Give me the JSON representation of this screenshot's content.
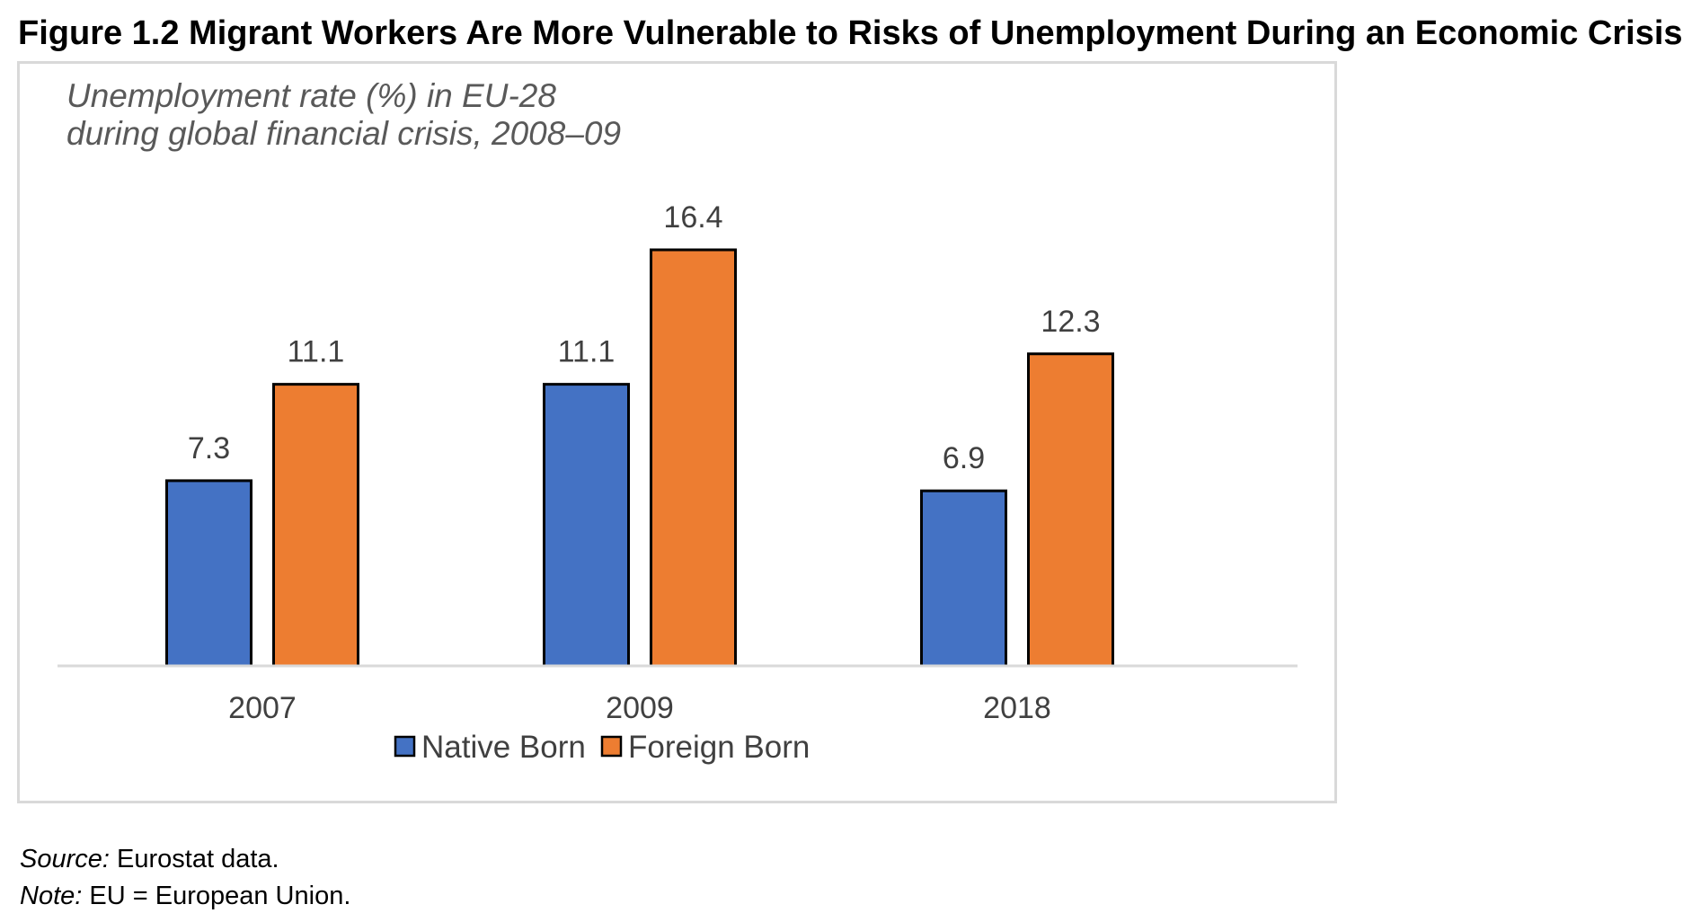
{
  "figure_title": "Figure 1.2 Migrant Workers Are More Vulnerable to Risks of Unemployment During an Economic Crisis",
  "chart_data": {
    "type": "bar",
    "subtitle_lines": [
      "Unemployment rate (%) in EU-28",
      "during global financial crisis, 2008–09"
    ],
    "categories": [
      "2007",
      "2009",
      "2018"
    ],
    "series": [
      {
        "name": "Native Born",
        "color": "#4472c4",
        "values": [
          7.3,
          11.1,
          6.9
        ],
        "labels": [
          "7.3",
          "11.1",
          "6.9"
        ]
      },
      {
        "name": "Foreign Born",
        "color": "#ed7d31",
        "values": [
          11.1,
          16.4,
          12.3
        ],
        "labels": [
          "11.1",
          "16.4",
          "12.3"
        ]
      }
    ],
    "ylim": [
      0,
      16.4
    ],
    "grid": false,
    "legend": "bottom-center"
  },
  "source": {
    "label": "Source:",
    "text": " Eurostat data."
  },
  "note": {
    "label": "Note:",
    "text": " EU = European Union."
  }
}
